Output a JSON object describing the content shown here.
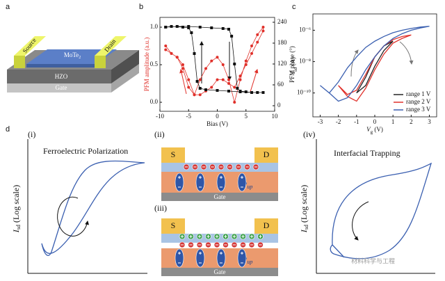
{
  "panels": {
    "a": {
      "label": "a",
      "source": "Source",
      "drain": "Drain",
      "channel": "MoTe",
      "channel_sub": "2",
      "dielectric": "HZO",
      "gate": "Gate"
    },
    "d": {
      "label": "d",
      "i": {
        "label": "(i)",
        "title": "Ferroelectric Polarization",
        "ylabel": {
          "main": "I",
          "sub": "sd",
          "unit": " (Log scale)"
        }
      },
      "ii": {
        "label": "(ii)",
        "source": "S",
        "drain": "D",
        "gate": "Gate",
        "polarization": {
          "main": "P",
          "sub": "up"
        }
      },
      "iii": {
        "label": "(iii)",
        "source": "S",
        "drain": "D",
        "gate": "Gate",
        "polarization": {
          "main": "P",
          "sub": "up"
        }
      },
      "iv": {
        "label": "(iv)",
        "title": "Interfacial Trapping",
        "ylabel": {
          "main": "I",
          "sub": "sd",
          "unit": " (Log scale)"
        }
      }
    },
    "watermark": "材料科学与工程"
  },
  "chart_data": [
    {
      "type": "line",
      "label": "b",
      "xlabel": "Bias (V)",
      "ylabel": "PFM amplitude (a.u.)",
      "y2label": "PFM phase (°)",
      "xlim": [
        -10,
        10
      ],
      "xticks": [
        -10,
        -5,
        0,
        5,
        10
      ],
      "ylim": [
        -0.12,
        1.13
      ],
      "yticks": [
        {
          "value": 0,
          "label": "0.0"
        },
        {
          "value": 0.5,
          "label": "0.5"
        },
        {
          "value": 1,
          "label": "1.0"
        }
      ],
      "y2lim": [
        -16,
        254
      ],
      "y2ticks": [
        0,
        60,
        120,
        180,
        240
      ],
      "series": [
        {
          "color": "#e0302a",
          "marker": "circle",
          "x": [
            -9,
            -8,
            -7,
            -6,
            -5,
            -4,
            -3,
            -2,
            -1,
            0,
            1,
            2,
            3,
            4,
            5,
            6,
            7,
            8,
            8,
            7,
            6,
            5,
            4,
            3,
            2,
            1,
            0,
            -1,
            -2,
            -3,
            -4,
            -5,
            -6,
            -7,
            -8,
            -9
          ],
          "values": [
            0.75,
            0.65,
            0.6,
            0.5,
            0.3,
            0.1,
            0.3,
            0.45,
            0.55,
            0.6,
            0.5,
            0.3,
            0.0,
            0.3,
            0.55,
            0.75,
            0.9,
            1.0,
            0.95,
            0.8,
            0.65,
            0.5,
            0.35,
            0.2,
            0.25,
            0.3,
            0.3,
            0.2,
            0.15,
            0.1,
            0.1,
            0.2,
            0.45,
            0.6,
            0.65,
            0.7
          ]
        },
        {
          "color": "#111111",
          "marker": "square",
          "axis": "y2",
          "x": [
            -9,
            -7,
            -5,
            -3,
            -1,
            1,
            2,
            2.5,
            3,
            3.5,
            4,
            5,
            6,
            7,
            8,
            8,
            6,
            4,
            2,
            0,
            -2,
            -3,
            -3.5,
            -4,
            -4.5,
            -5,
            -6,
            -8,
            -9
          ],
          "values": [
            226,
            228,
            228,
            226,
            224,
            222,
            220,
            200,
            120,
            50,
            42,
            40,
            38,
            38,
            38,
            38,
            38,
            40,
            42,
            44,
            46,
            50,
            70,
            150,
            210,
            224,
            226,
            228,
            226
          ]
        }
      ]
    },
    {
      "type": "line",
      "label": "c",
      "log_y": true,
      "xlabel": {
        "main": "V",
        "sub": "g",
        "unit": " (V)"
      },
      "ylabel": {
        "main": "I",
        "sub": "sd",
        "unit": " (A)"
      },
      "xlim": [
        -3.4,
        3.4
      ],
      "xticks": [
        -3,
        -2,
        -1,
        0,
        1,
        2,
        3
      ],
      "ylim": [
        3e-12,
        1.1e-05
      ],
      "yticks": [
        {
          "value": 1e-10,
          "label": "10⁻¹⁰"
        },
        {
          "value": 1e-08,
          "label": "10⁻⁸"
        },
        {
          "value": 1e-06,
          "label": "10⁻⁶"
        }
      ],
      "legend": "lower-right",
      "series": [
        {
          "name": "range 1 V",
          "color": "#222222",
          "x": [
            -1,
            -0.5,
            0,
            0.5,
            1,
            0.5,
            0,
            -0.5,
            -1
          ],
          "values": [
            1e-10,
            3e-10,
            5e-09,
            5e-08,
            2e-07,
            1e-07,
            2e-08,
            1e-09,
            1e-10
          ]
        },
        {
          "name": "range 2 V",
          "color": "#e0302a",
          "x": [
            -2,
            -1.5,
            -1,
            -0.5,
            0,
            0.5,
            1,
            1.5,
            2,
            1.5,
            1,
            0.5,
            0,
            -0.5,
            -1,
            -1.5,
            -2
          ],
          "values": [
            3e-10,
            6e-11,
            3e-11,
            2e-10,
            3e-09,
            3e-08,
            1.5e-07,
            3e-07,
            5e-07,
            4e-07,
            2.5e-07,
            1e-07,
            2e-08,
            1.5e-09,
            1.5e-10,
            8e-11,
            3e-10
          ]
        },
        {
          "name": "range 3 V",
          "color": "#3a5fb0",
          "x": [
            -3,
            -2.5,
            -2,
            -1.5,
            -1,
            -0.5,
            0,
            0.5,
            1,
            1.5,
            2,
            2.5,
            3,
            2.5,
            2,
            1.5,
            1,
            0.5,
            0,
            -0.5,
            -1,
            -1.5,
            -2,
            -2.5,
            -3
          ],
          "values": [
            3e-10,
            1e-10,
            3e-11,
            5e-11,
            3e-10,
            3e-09,
            2e-08,
            1e-07,
            3e-07,
            6e-07,
            1e-06,
            1.4e-06,
            1.8e-06,
            1.6e-06,
            1.3e-06,
            1e-06,
            7e-07,
            4e-07,
            2e-07,
            8e-08,
            2e-08,
            4e-09,
            5e-10,
            1e-10,
            3e-10
          ]
        }
      ]
    }
  ]
}
